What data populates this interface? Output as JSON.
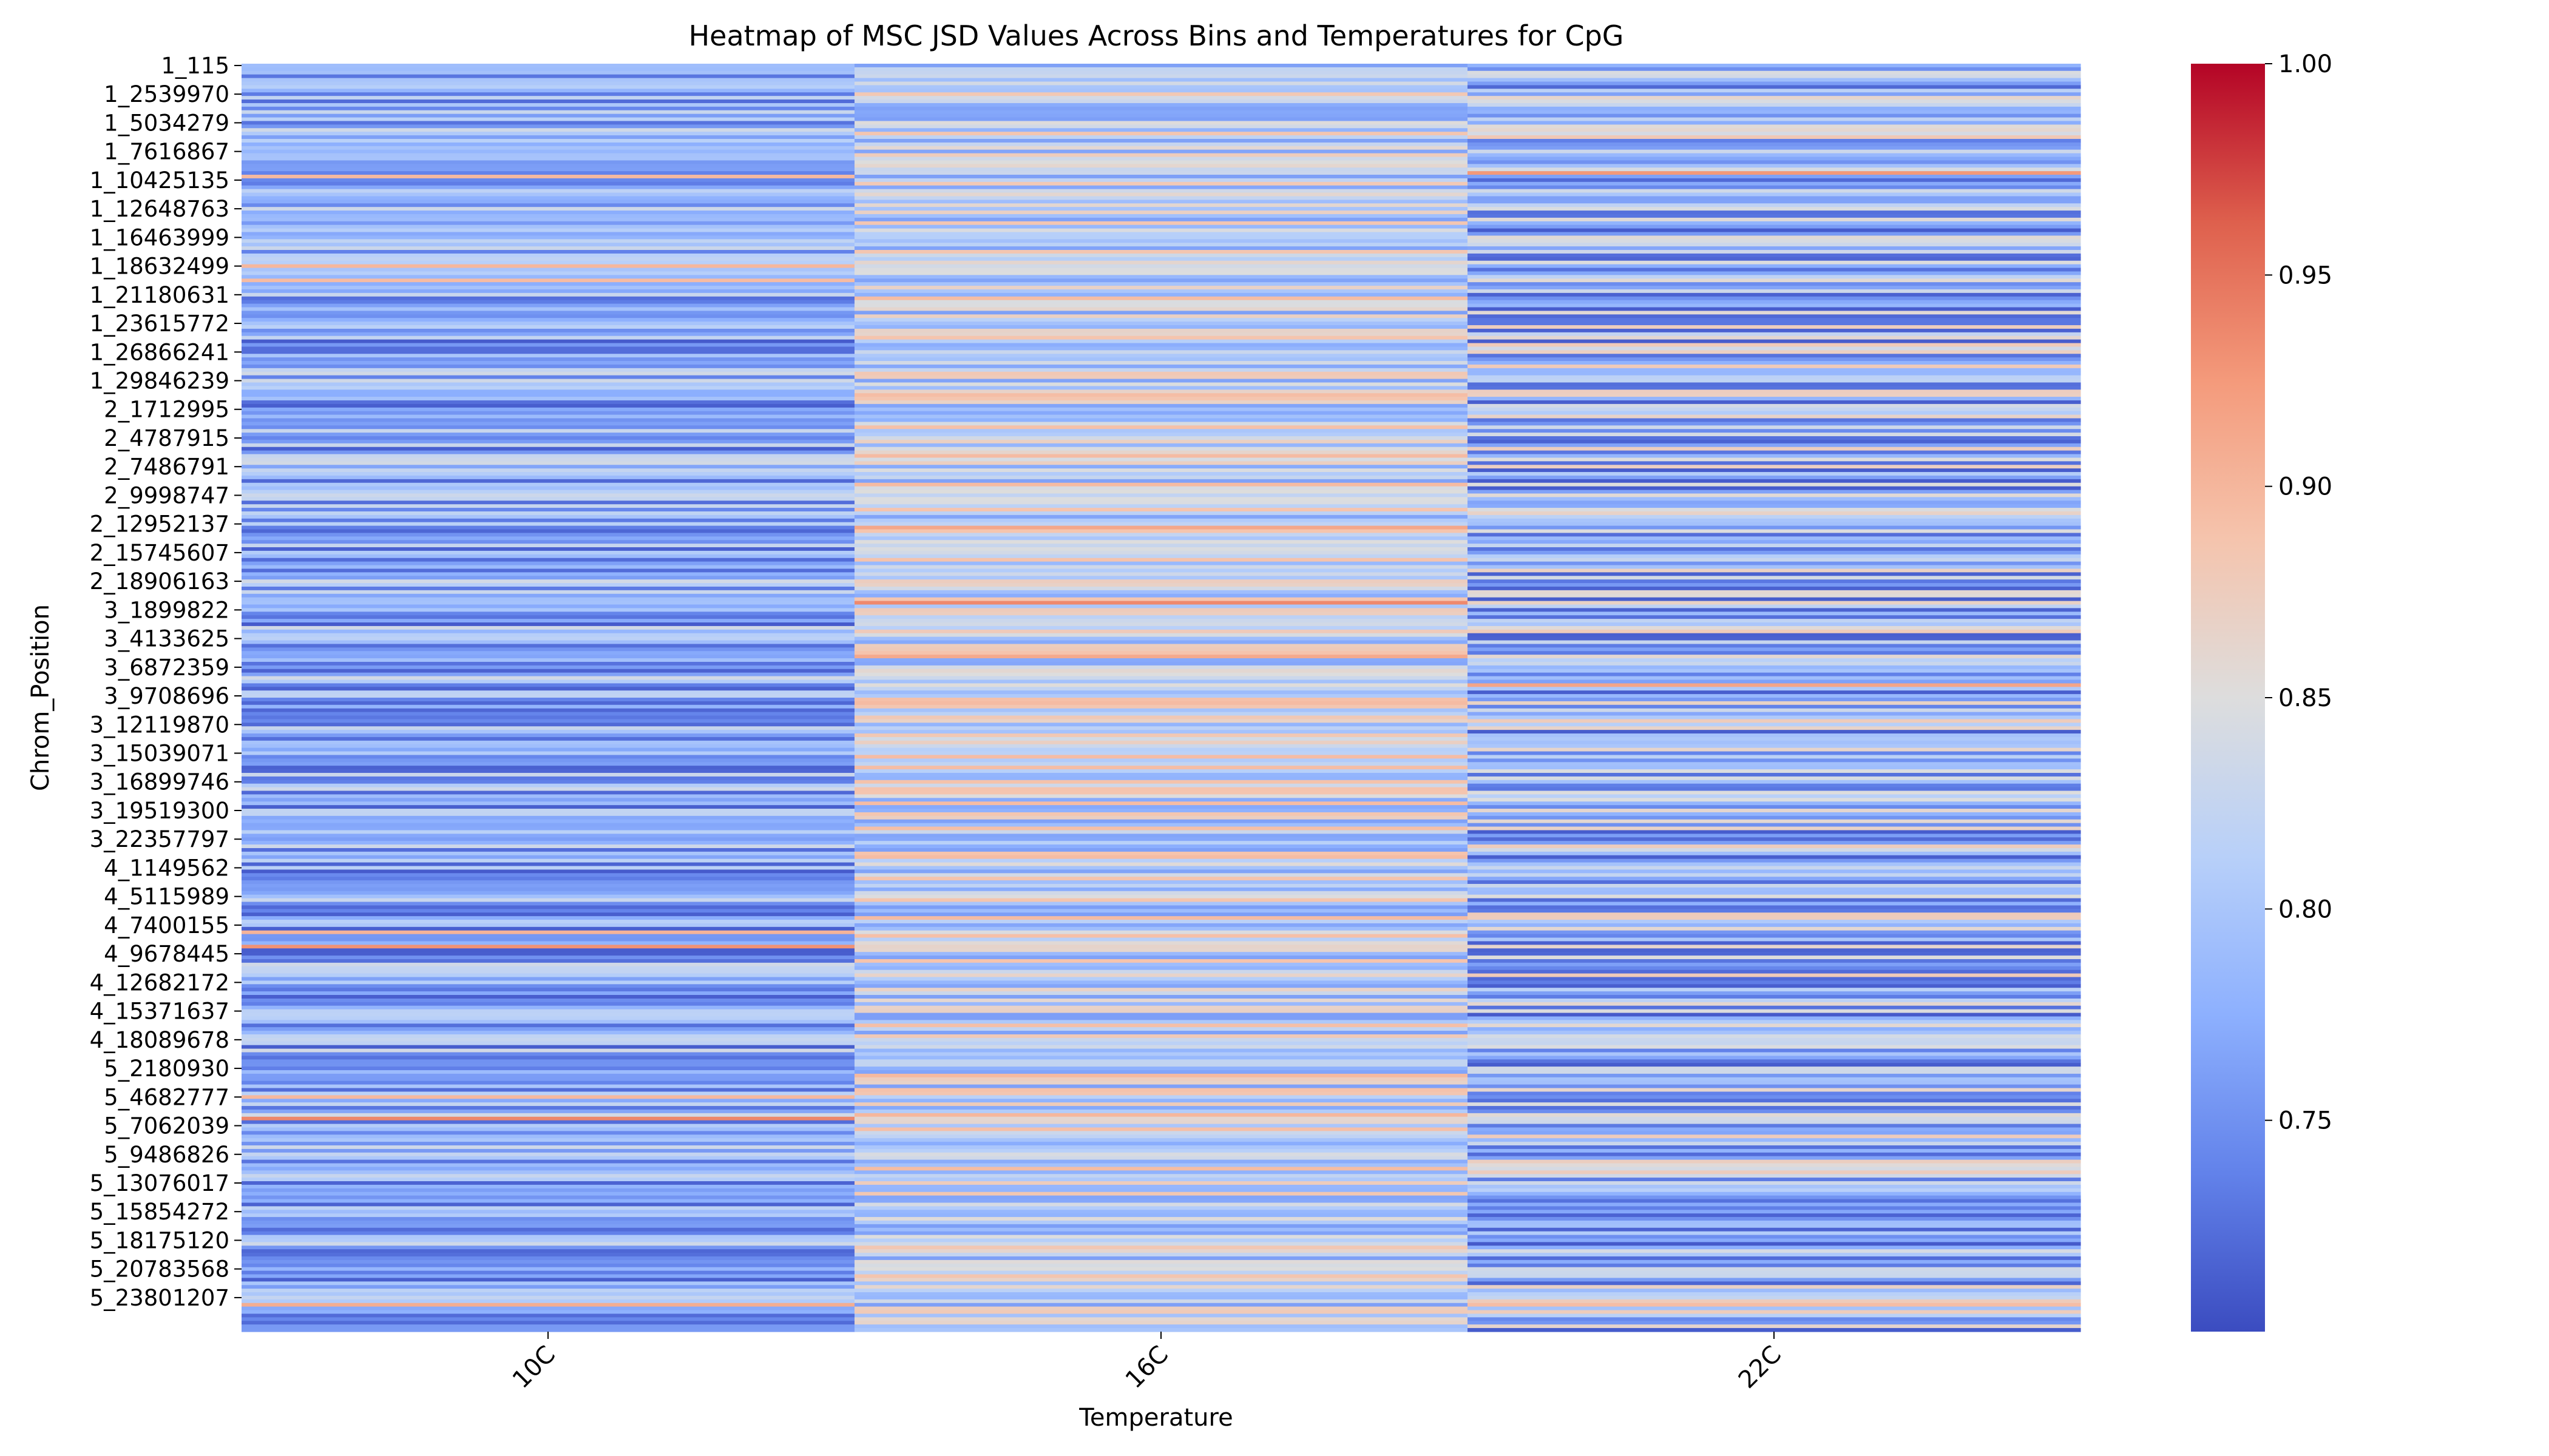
{
  "chart_data": {
    "type": "heatmap",
    "title": "Heatmap of MSC JSD Values Across Bins and Temperatures for CpG",
    "xlabel": "Temperature",
    "ylabel": "Chrom_Position",
    "columns": [
      "10C",
      "16C",
      "22C"
    ],
    "row_tick_labels": [
      "1_115",
      "1_2539970",
      "1_5034279",
      "1_7616867",
      "1_10425135",
      "1_12648763",
      "1_16463999",
      "1_18632499",
      "1_21180631",
      "1_23615772",
      "1_26866241",
      "1_29846239",
      "2_1712995",
      "2_4787915",
      "2_7486791",
      "2_9998747",
      "2_12952137",
      "2_15745607",
      "2_18906163",
      "3_1899822",
      "3_4133625",
      "3_6872359",
      "3_9708696",
      "3_12119870",
      "3_15039071",
      "3_16899746",
      "3_19519300",
      "3_22357797",
      "4_1149562",
      "4_5115989",
      "4_7400155",
      "4_9678445",
      "4_12682172",
      "4_15371637",
      "4_18089678",
      "5_2180930",
      "5_4682777",
      "5_7062039",
      "5_9486826",
      "5_13076017",
      "5_15854272",
      "5_18175120",
      "5_20783568",
      "5_23801207"
    ],
    "rows_per_tick": 8,
    "total_rows": 354,
    "value_range": [
      0.7,
      1.0
    ],
    "colormap": "coolwarm",
    "colorbar": {
      "ticks": [
        "0.75",
        "0.80",
        "0.85",
        "0.90",
        "0.95",
        "1.00"
      ],
      "tick_values": [
        0.75,
        0.8,
        0.85,
        0.9,
        0.95,
        1.0
      ]
    },
    "column_value_profile": [
      {
        "name": "10C",
        "typical_range": [
          0.71,
          0.84
        ]
      },
      {
        "name": "16C",
        "typical_range": [
          0.76,
          0.9
        ]
      },
      {
        "name": "22C",
        "typical_range": [
          0.71,
          0.88
        ]
      }
    ]
  }
}
